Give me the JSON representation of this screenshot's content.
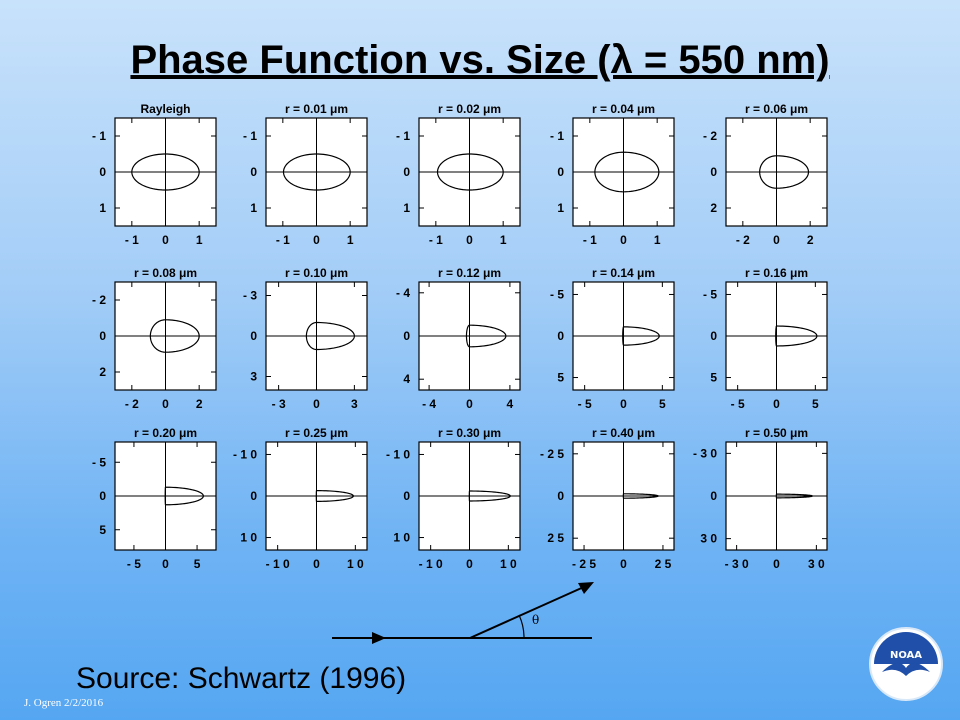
{
  "slide": {
    "title": "Phase Function vs. Size (λ = 550 nm)",
    "source": "Source: Schwartz (1996)",
    "footer": "J. Ogren  2/2/2016",
    "logo_text": "NOAA"
  },
  "diagram": {
    "angle_label": "θ"
  },
  "colors": {
    "bg_top": "#c8e2fb",
    "bg_bottom": "#55a6f2",
    "plot_bg": "#ffffff",
    "ink": "#000000"
  },
  "chart_data": [
    {
      "type": "line",
      "title": "Rayleigh",
      "range": 1.5,
      "ticks": [
        -1,
        0,
        1
      ],
      "xticklabels": [
        "- 1",
        "0",
        "1"
      ],
      "yticklabels": [
        "1",
        "0",
        "- 1"
      ],
      "polar_shape": {
        "front": 1.0,
        "back": 1.0,
        "side": 0.5
      }
    },
    {
      "type": "line",
      "title": "r = 0.01  μm",
      "range": 1.5,
      "ticks": [
        -1,
        0,
        1
      ],
      "xticklabels": [
        "- 1",
        "0",
        "1"
      ],
      "yticklabels": [
        "1",
        "0",
        "- 1"
      ],
      "polar_shape": {
        "front": 1.0,
        "back": 0.98,
        "side": 0.5
      }
    },
    {
      "type": "line",
      "title": "r = 0.02  μm",
      "range": 1.5,
      "ticks": [
        -1,
        0,
        1
      ],
      "xticklabels": [
        "- 1",
        "0",
        "1"
      ],
      "yticklabels": [
        "1",
        "0",
        "- 1"
      ],
      "polar_shape": {
        "front": 1.0,
        "back": 0.95,
        "side": 0.5
      }
    },
    {
      "type": "line",
      "title": "r = 0.04  μm",
      "range": 1.5,
      "ticks": [
        -1,
        0,
        1
      ],
      "xticklabels": [
        "- 1",
        "0",
        "1"
      ],
      "yticklabels": [
        "1",
        "0",
        "- 1"
      ],
      "polar_shape": {
        "front": 1.05,
        "back": 0.85,
        "side": 0.55
      }
    },
    {
      "type": "line",
      "title": "r = 0.06  μm",
      "range": 3,
      "ticks": [
        -2,
        0,
        2
      ],
      "xticklabels": [
        "- 2",
        "0",
        "2"
      ],
      "yticklabels": [
        "2",
        "0",
        "- 2"
      ],
      "polar_shape": {
        "front": 1.9,
        "back": 1.0,
        "side": 0.9
      }
    },
    {
      "type": "line",
      "title": "r = 0.08  μm",
      "range": 3,
      "ticks": [
        -2,
        0,
        2
      ],
      "xticklabels": [
        "- 2",
        "0",
        "2"
      ],
      "yticklabels": [
        "2",
        "0",
        "- 2"
      ],
      "polar_shape": {
        "front": 2.0,
        "back": 0.9,
        "side": 0.9
      }
    },
    {
      "type": "line",
      "title": "r = 0.10  μm",
      "range": 4,
      "ticks": [
        -3,
        0,
        3
      ],
      "xticklabels": [
        "- 3",
        "0",
        "3"
      ],
      "yticklabels": [
        "3",
        "0",
        "- 3"
      ],
      "polar_shape": {
        "front": 3.0,
        "back": 0.8,
        "side": 1.0
      }
    },
    {
      "type": "line",
      "title": "r = 0.12  μm",
      "range": 5,
      "ticks": [
        -4,
        0,
        4
      ],
      "xticklabels": [
        "- 4",
        "0",
        "4"
      ],
      "yticklabels": [
        "4",
        "0",
        "- 4"
      ],
      "polar_shape": {
        "front": 3.6,
        "back": 0.3,
        "side": 1.0
      }
    },
    {
      "type": "line",
      "title": "r = 0.14  μm",
      "range": 6.5,
      "ticks": [
        -5,
        0,
        5
      ],
      "xticklabels": [
        "- 5",
        "0",
        "5"
      ],
      "yticklabels": [
        "5",
        "0",
        "- 5"
      ],
      "polar_shape": {
        "front": 4.6,
        "back": 0.1,
        "side": 1.1
      }
    },
    {
      "type": "line",
      "title": "r = 0.16  μm",
      "range": 6.5,
      "ticks": [
        -5,
        0,
        5
      ],
      "xticklabels": [
        "- 5",
        "0",
        "5"
      ],
      "yticklabels": [
        "5",
        "0",
        "- 5"
      ],
      "polar_shape": {
        "front": 5.2,
        "back": 0.1,
        "side": 1.2
      }
    },
    {
      "type": "line",
      "title": "r = 0.20  μm",
      "range": 8,
      "ticks": [
        -5,
        0,
        5
      ],
      "xticklabels": [
        "- 5",
        "0",
        "5"
      ],
      "yticklabels": [
        "5",
        "0",
        "- 5"
      ],
      "polar_shape": {
        "front": 6.0,
        "back": 0.05,
        "side": 1.3
      }
    },
    {
      "type": "line",
      "title": "r = 0.25  μm",
      "range": 13,
      "ticks": [
        -10,
        0,
        10
      ],
      "xticklabels": [
        "- 1 0",
        "0",
        "1 0"
      ],
      "yticklabels": [
        "1 0",
        "0",
        "- 1 0"
      ],
      "polar_shape": {
        "front": 9.5,
        "back": 0.05,
        "side": 1.3
      }
    },
    {
      "type": "line",
      "title": "r = 0.30  μm",
      "range": 13,
      "ticks": [
        -10,
        0,
        10
      ],
      "xticklabels": [
        "- 1 0",
        "0",
        "1 0"
      ],
      "yticklabels": [
        "1 0",
        "0",
        "- 1 0"
      ],
      "polar_shape": {
        "front": 10.5,
        "back": 0.05,
        "side": 1.2
      }
    },
    {
      "type": "line",
      "title": "r = 0.40  μm",
      "range": 32,
      "ticks": [
        -25,
        0,
        25
      ],
      "xticklabels": [
        "- 2 5",
        "0",
        "2 5"
      ],
      "yticklabels": [
        "2 5",
        "0",
        "- 2 5"
      ],
      "polar_shape": {
        "front": 22,
        "back": 0.1,
        "side": 1.3
      }
    },
    {
      "type": "line",
      "title": "r = 0.50  μm",
      "range": 38,
      "ticks": [
        -30,
        0,
        30
      ],
      "xticklabels": [
        "- 3 0",
        "0",
        "3 0"
      ],
      "yticklabels": [
        "3 0",
        "0",
        "- 3 0"
      ],
      "polar_shape": {
        "front": 27,
        "back": 0.1,
        "side": 1.3
      }
    }
  ]
}
